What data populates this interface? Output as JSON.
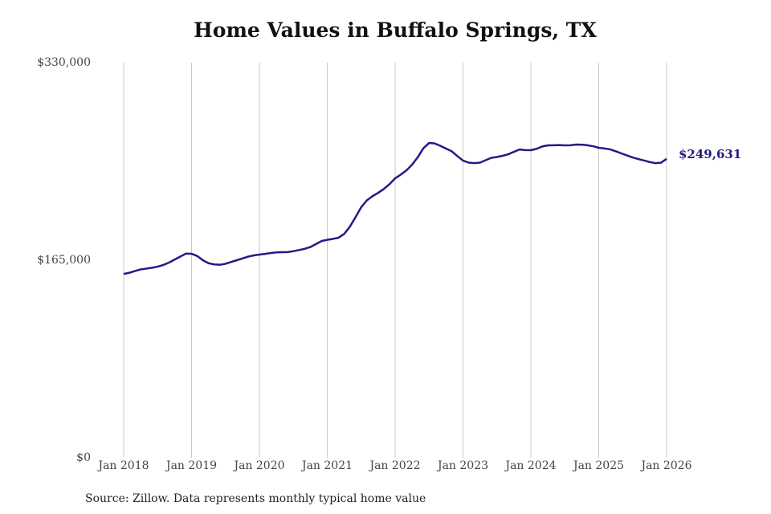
{
  "chart_data": {
    "type": "line",
    "title": "Home Values in Buffalo Springs, TX",
    "source": "Source: Zillow. Data represents monthly typical home value",
    "x": [
      "2018-01",
      "2018-02",
      "2018-03",
      "2018-04",
      "2018-05",
      "2018-06",
      "2018-07",
      "2018-08",
      "2018-09",
      "2018-10",
      "2018-11",
      "2018-12",
      "2019-01",
      "2019-02",
      "2019-03",
      "2019-04",
      "2019-05",
      "2019-06",
      "2019-07",
      "2019-08",
      "2019-09",
      "2019-10",
      "2019-11",
      "2019-12",
      "2020-01",
      "2020-02",
      "2020-03",
      "2020-04",
      "2020-05",
      "2020-06",
      "2020-07",
      "2020-08",
      "2020-09",
      "2020-10",
      "2020-11",
      "2020-12",
      "2021-01",
      "2021-02",
      "2021-03",
      "2021-04",
      "2021-05",
      "2021-06",
      "2021-07",
      "2021-08",
      "2021-09",
      "2021-10",
      "2021-11",
      "2021-12",
      "2022-01",
      "2022-02",
      "2022-03",
      "2022-04",
      "2022-05",
      "2022-06",
      "2022-07",
      "2022-08",
      "2022-09",
      "2022-10",
      "2022-11",
      "2022-12",
      "2023-01",
      "2023-02",
      "2023-03",
      "2023-04",
      "2023-05",
      "2023-06",
      "2023-07",
      "2023-08",
      "2023-09",
      "2023-10",
      "2023-11",
      "2023-12",
      "2024-01",
      "2024-02",
      "2024-03",
      "2024-04",
      "2024-05",
      "2024-06",
      "2024-07",
      "2024-08",
      "2024-09",
      "2024-10",
      "2024-11",
      "2024-12",
      "2025-01",
      "2025-02",
      "2025-03",
      "2025-04",
      "2025-05",
      "2025-06",
      "2025-07",
      "2025-08",
      "2025-09",
      "2025-10",
      "2025-11",
      "2025-12",
      "2026-01"
    ],
    "series": [
      {
        "name": "Home value",
        "color": "#221b86",
        "values": [
          153500,
          154500,
          156000,
          157300,
          158000,
          158700,
          159600,
          161000,
          163000,
          165500,
          168000,
          170500,
          170400,
          168500,
          165000,
          162500,
          161500,
          161200,
          162000,
          163500,
          165000,
          166500,
          168000,
          169000,
          169700,
          170300,
          171000,
          171500,
          171700,
          171800,
          172500,
          173500,
          174500,
          176000,
          178500,
          181000,
          182000,
          182800,
          183800,
          187000,
          193000,
          201000,
          209300,
          215000,
          218500,
          221300,
          224500,
          228500,
          233400,
          236500,
          240000,
          244800,
          251000,
          258500,
          262900,
          262500,
          260500,
          258200,
          256000,
          252000,
          248200,
          246500,
          246100,
          246500,
          248500,
          250500,
          251200,
          252200,
          253500,
          255500,
          257500,
          257000,
          256900,
          258000,
          260000,
          260900,
          261000,
          261200,
          260900,
          261000,
          261600,
          261500,
          261000,
          260200,
          258900,
          258300,
          257600,
          256000,
          254200,
          252500,
          250800,
          249500,
          248300,
          247000,
          246100,
          246400,
          249631
        ],
        "value_labels": [
          null,
          null,
          null,
          null,
          null,
          null,
          null,
          null,
          null,
          null,
          null,
          null,
          null,
          null,
          null,
          null,
          null,
          null,
          null,
          null,
          null,
          null,
          null,
          null,
          null,
          null,
          null,
          null,
          null,
          null,
          null,
          null,
          null,
          null,
          null,
          null,
          null,
          null,
          null,
          null,
          null,
          null,
          null,
          null,
          null,
          null,
          null,
          null,
          null,
          null,
          null,
          null,
          null,
          null,
          null,
          null,
          null,
          null,
          null,
          null,
          null,
          null,
          null,
          null,
          null,
          null,
          null,
          null,
          null,
          null,
          null,
          null,
          null,
          null,
          null,
          null,
          null,
          null,
          null,
          null,
          null,
          null,
          null,
          null,
          null,
          null,
          null,
          null,
          null,
          null,
          null,
          null,
          null,
          null,
          null,
          null,
          "$249,631"
        ]
      }
    ],
    "xticks": [
      {
        "value": "2018-01",
        "label": "Jan 2018"
      },
      {
        "value": "2019-01",
        "label": "Jan 2019"
      },
      {
        "value": "2020-01",
        "label": "Jan 2020"
      },
      {
        "value": "2021-01",
        "label": "Jan 2021"
      },
      {
        "value": "2022-01",
        "label": "Jan 2022"
      },
      {
        "value": "2023-01",
        "label": "Jan 2023"
      },
      {
        "value": "2024-01",
        "label": "Jan 2024"
      },
      {
        "value": "2025-01",
        "label": "Jan 2025"
      },
      {
        "value": "2026-01",
        "label": "Jan 2026"
      }
    ],
    "ylim": [
      0,
      330000
    ],
    "yticks": [
      {
        "value": 0,
        "label": "$0"
      },
      {
        "value": 165000,
        "label": "$165,000"
      },
      {
        "value": 330000,
        "label": "$330,000"
      }
    ],
    "grid": "x"
  }
}
